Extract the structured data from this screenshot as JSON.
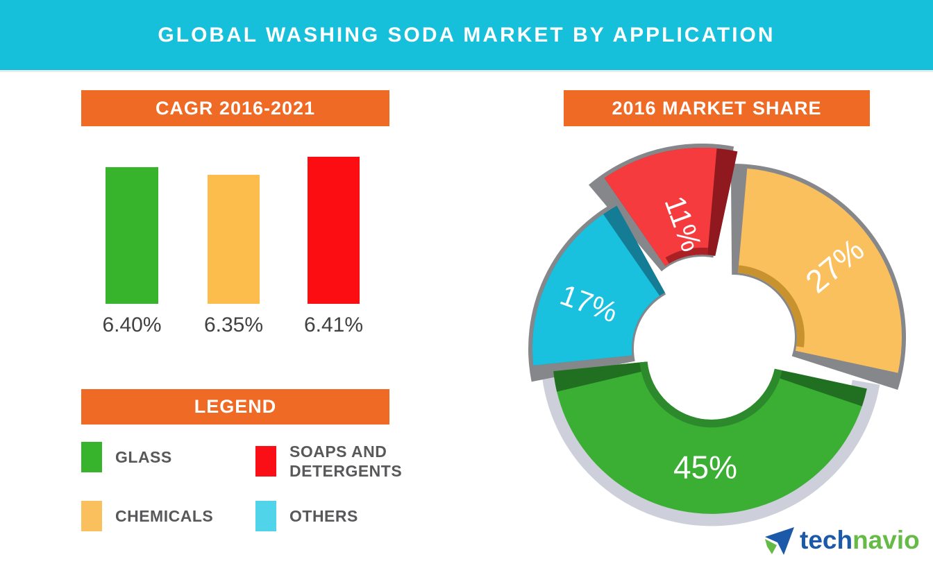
{
  "page": {
    "title": "GLOBAL WASHING SODA MARKET BY APPLICATION",
    "banner_color": "#16BFDA",
    "background": "#FFFFFF",
    "accent_orange": "#EF6A25"
  },
  "chart_data": [
    {
      "type": "bar",
      "title": "CAGR 2016-2021",
      "header_color": "#EF6A25",
      "categories": [
        "Glass",
        "Chemicals",
        "Soaps and Detergents"
      ],
      "values": [
        6.4,
        6.35,
        6.41
      ],
      "value_labels": [
        "6.40%",
        "6.35%",
        "6.41%"
      ],
      "bar_colors": [
        "#37B32C",
        "#FDBD4C",
        "#FC0D12"
      ],
      "ylabel": "CAGR %",
      "ylim": [
        0,
        7
      ],
      "grid": false,
      "axes_shown": false
    },
    {
      "type": "pie",
      "subtype": "exploded-donut",
      "title": "2016 MARKET SHARE",
      "header_color": "#EF6A25",
      "start_angle_deg": 5,
      "clockwise": true,
      "label_color": "#FFFFFF",
      "slices": [
        {
          "label": "Chemicals",
          "value": 27,
          "display": "27%",
          "color": "#FBC05E"
        },
        {
          "label": "Glass",
          "value": 45,
          "display": "45%",
          "color": "#3AAF34"
        },
        {
          "label": "Others",
          "value": 17,
          "display": "17%",
          "color": "#19C1DF"
        },
        {
          "label": "Soaps and Detergents",
          "value": 11,
          "display": "11%",
          "color": "#F53B3E"
        }
      ]
    }
  ],
  "legend": {
    "title": "LEGEND",
    "items": [
      {
        "label": "GLASS",
        "color": "#37B32C"
      },
      {
        "label": "SOAPS AND DETERGENTS",
        "color": "#F90F15"
      },
      {
        "label": "CHEMICALS",
        "color": "#FBC05E"
      },
      {
        "label": "OTHERS",
        "color": "#4FD4E9"
      }
    ]
  },
  "logo": {
    "name": "technavio",
    "text_blue": "tech",
    "text_green": "navio",
    "blue": "#1C59A9",
    "green": "#66BB47"
  }
}
